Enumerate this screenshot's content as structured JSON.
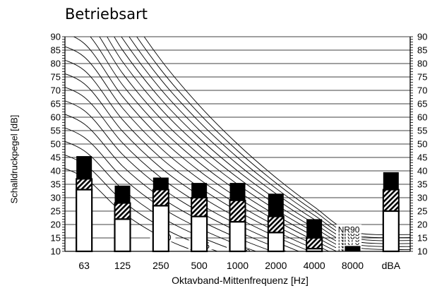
{
  "chart_data": {
    "type": "bar",
    "title": "Betriebsart",
    "xlabel": "Oktavband-Mittenfrequenz [Hz]",
    "ylabel": "Schalldruckpegel [dB]",
    "ylim": [
      10,
      90
    ],
    "yticks": [
      10,
      15,
      20,
      25,
      30,
      35,
      40,
      45,
      50,
      55,
      60,
      65,
      70,
      75,
      80,
      85,
      90
    ],
    "grid": true,
    "categories": [
      "63",
      "125",
      "250",
      "500",
      "1000",
      "2000",
      "4000",
      "8000",
      "dBA"
    ],
    "series": [
      {
        "values": [
          33,
          22,
          27,
          23,
          21,
          17,
          11,
          10,
          25
        ]
      },
      {
        "values": [
          37,
          28,
          33,
          30,
          29,
          23,
          15,
          10,
          33
        ]
      },
      {
        "values": [
          45.5,
          34.5,
          37.5,
          35.5,
          35.5,
          31.5,
          22,
          12,
          39.5
        ]
      }
    ],
    "nr_curves": {
      "labels": [
        "NR0",
        "NR5",
        "NR10",
        "NR15",
        "NR20",
        "NR25",
        "NR30",
        "NR35",
        "NR40",
        "NR45",
        "NR50",
        "NR55",
        "NR60",
        "NR65",
        "NR70",
        "NR75",
        "NR80",
        "NR85",
        "NR90"
      ],
      "values": [
        0,
        5,
        10,
        15,
        20,
        25,
        30,
        35,
        40,
        45,
        50,
        55,
        60,
        65,
        70,
        75,
        80,
        85,
        90
      ]
    }
  }
}
